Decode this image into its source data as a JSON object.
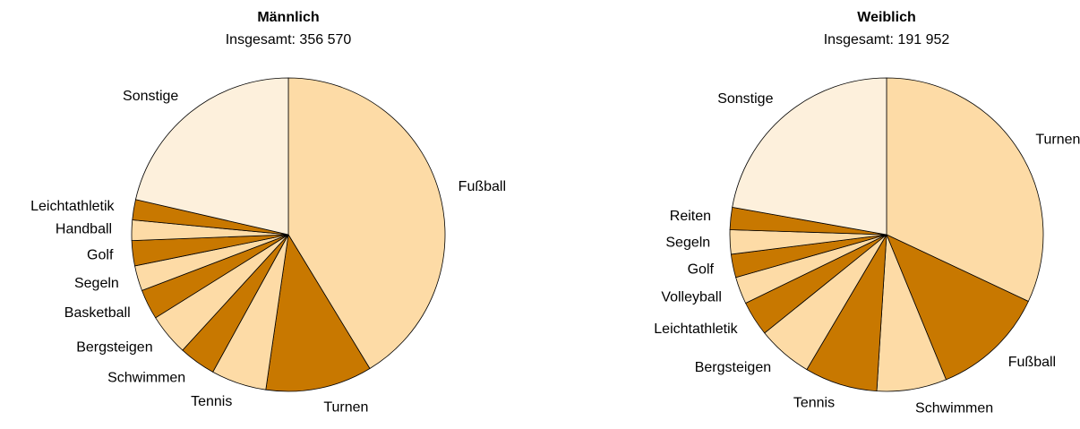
{
  "chart_data": [
    {
      "type": "pie",
      "title": "Männlich",
      "subtitle": "Insgesamt: 356 570",
      "categories": [
        "Fußball",
        "Turnen",
        "Tennis",
        "Schwimmen",
        "Bergsteigen",
        "Basketball",
        "Segeln",
        "Golf",
        "Handball",
        "Leichtathletik",
        "Sonstige"
      ],
      "values": [
        41.3,
        11,
        5.7,
        3.8,
        4.3,
        3.1,
        2.6,
        2.6,
        2.1,
        2.1,
        21.4
      ],
      "colors": [
        "#fddba6",
        "#c87800",
        "#fddba6",
        "#c87800",
        "#fddba6",
        "#c87800",
        "#fddba6",
        "#c87800",
        "#fddba6",
        "#c87800",
        "#fdf0dc"
      ]
    },
    {
      "type": "pie",
      "title": "Weiblich",
      "subtitle": "Insgesamt: 191 952",
      "categories": [
        "Turnen",
        "Fußball",
        "Schwimmen",
        "Tennis",
        "Bergsteigen",
        "Leichtathletik",
        "Volleyball",
        "Golf",
        "Segeln",
        "Reiten",
        "Sonstige"
      ],
      "values": [
        32,
        11.8,
        7.2,
        7.5,
        5.7,
        3.6,
        2.8,
        2.4,
        2.5,
        2.3,
        22.2
      ],
      "colors": [
        "#fddba6",
        "#c87800",
        "#fddba6",
        "#c87800",
        "#fddba6",
        "#c87800",
        "#fddba6",
        "#c87800",
        "#fddba6",
        "#c87800",
        "#fdf0dc"
      ]
    }
  ]
}
